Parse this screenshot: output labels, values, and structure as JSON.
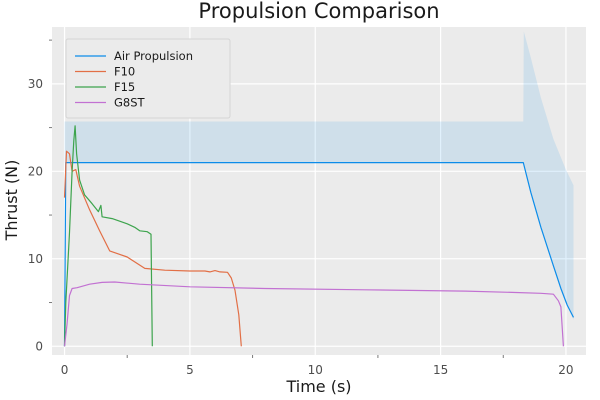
{
  "chart_data": {
    "type": "line",
    "title": "Propulsion Comparison",
    "xlabel": "Time (s)",
    "ylabel": "Thrust (N)",
    "xlim": [
      -0.5,
      20.8
    ],
    "ylim": [
      -1,
      36.5
    ],
    "xticks": [
      0,
      5,
      10,
      15,
      20
    ],
    "yticks": [
      0,
      10,
      20,
      30
    ],
    "grid": true,
    "legend_position": "top-left",
    "background": "#ebebeb",
    "band": {
      "series": "Air Propulsion",
      "color": "#0c8ce9",
      "opacity": 0.12,
      "upper": [
        [
          0.0,
          25.7
        ],
        [
          18.3,
          25.7
        ],
        [
          18.32,
          36.0
        ],
        [
          18.6,
          33.0
        ],
        [
          19.0,
          28.4
        ],
        [
          19.5,
          23.7
        ],
        [
          20.0,
          20.2
        ],
        [
          20.3,
          18.4
        ]
      ],
      "lower": [
        [
          20.3,
          3.0
        ],
        [
          20.0,
          5.0
        ],
        [
          19.5,
          9.0
        ],
        [
          19.0,
          13.5
        ],
        [
          18.6,
          17.5
        ],
        [
          18.3,
          21.0
        ],
        [
          0.0,
          21.0
        ]
      ]
    },
    "series": [
      {
        "name": "Air Propulsion",
        "color": "#0c8ce9",
        "points": [
          [
            0.0,
            0.0
          ],
          [
            0.05,
            21.0
          ],
          [
            18.3,
            21.0
          ],
          [
            18.6,
            17.6
          ],
          [
            19.0,
            13.6
          ],
          [
            19.5,
            9.2
          ],
          [
            19.8,
            6.6
          ],
          [
            20.05,
            4.7
          ],
          [
            20.3,
            3.3
          ]
        ]
      },
      {
        "name": "F10",
        "color": "#e26f46",
        "points": [
          [
            0.0,
            17.0
          ],
          [
            0.08,
            22.3
          ],
          [
            0.2,
            22.0
          ],
          [
            0.3,
            20.0
          ],
          [
            0.45,
            20.2
          ],
          [
            0.6,
            18.3
          ],
          [
            1.0,
            15.6
          ],
          [
            1.4,
            13.2
          ],
          [
            1.8,
            10.9
          ],
          [
            2.5,
            10.2
          ],
          [
            3.2,
            8.9
          ],
          [
            4.0,
            8.7
          ],
          [
            5.0,
            8.6
          ],
          [
            5.6,
            8.6
          ],
          [
            5.8,
            8.5
          ],
          [
            6.0,
            8.65
          ],
          [
            6.2,
            8.5
          ],
          [
            6.5,
            8.45
          ],
          [
            6.65,
            7.8
          ],
          [
            6.8,
            6.4
          ],
          [
            6.95,
            3.6
          ],
          [
            7.05,
            0.0
          ]
        ]
      },
      {
        "name": "F15",
        "color": "#3da44d",
        "points": [
          [
            0.0,
            0.0
          ],
          [
            0.05,
            5.0
          ],
          [
            0.2,
            13.0
          ],
          [
            0.3,
            20.0
          ],
          [
            0.37,
            23.5
          ],
          [
            0.42,
            25.2
          ],
          [
            0.48,
            22.0
          ],
          [
            0.6,
            19.0
          ],
          [
            0.8,
            17.3
          ],
          [
            1.1,
            16.3
          ],
          [
            1.35,
            15.4
          ],
          [
            1.45,
            16.1
          ],
          [
            1.5,
            14.8
          ],
          [
            1.9,
            14.6
          ],
          [
            2.5,
            14.0
          ],
          [
            2.8,
            13.6
          ],
          [
            3.0,
            13.2
          ],
          [
            3.3,
            13.1
          ],
          [
            3.45,
            12.8
          ],
          [
            3.5,
            0.0
          ]
        ]
      },
      {
        "name": "G8ST",
        "color": "#c271d2",
        "points": [
          [
            0.0,
            0.0
          ],
          [
            0.1,
            2.5
          ],
          [
            0.2,
            5.8
          ],
          [
            0.3,
            6.6
          ],
          [
            0.5,
            6.7
          ],
          [
            1.0,
            7.1
          ],
          [
            1.5,
            7.3
          ],
          [
            2.0,
            7.35
          ],
          [
            3.0,
            7.1
          ],
          [
            5.0,
            6.8
          ],
          [
            8.0,
            6.6
          ],
          [
            12.0,
            6.45
          ],
          [
            16.0,
            6.3
          ],
          [
            18.0,
            6.15
          ],
          [
            19.0,
            6.05
          ],
          [
            19.5,
            5.95
          ],
          [
            19.7,
            5.2
          ],
          [
            19.8,
            4.5
          ],
          [
            19.9,
            0.0
          ]
        ]
      }
    ]
  }
}
